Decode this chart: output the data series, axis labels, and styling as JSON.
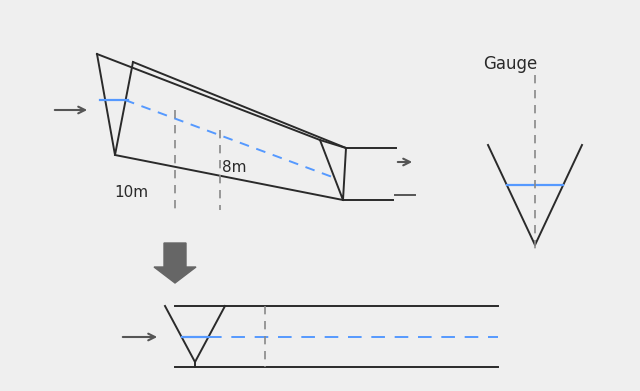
{
  "bg_color": "#efefef",
  "line_color": "#2a2a2a",
  "blue_color": "#5599ff",
  "dashed_gray": "#888888",
  "arrow_color": "#555555",
  "dark_arrow_color": "#666666",
  "gauge_label": "Gauge",
  "label_10m": "10m",
  "label_8m": "8m",
  "font_size": 11
}
